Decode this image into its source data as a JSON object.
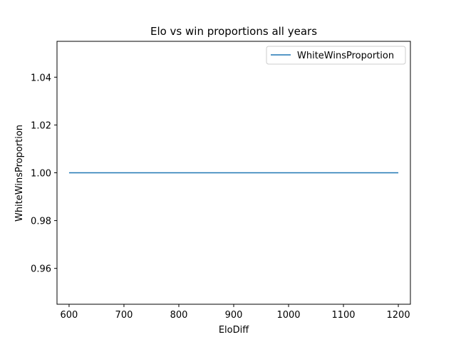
{
  "chart_data": {
    "type": "line",
    "title": "Elo vs win proportions all years",
    "xlabel": "EloDiff",
    "ylabel": "WhiteWinsProportion",
    "xlim": [
      578,
      1222
    ],
    "ylim": [
      0.945,
      1.055
    ],
    "x_ticks": [
      600,
      700,
      800,
      900,
      1000,
      1100,
      1200
    ],
    "y_ticks": [
      0.96,
      0.98,
      1.0,
      1.02,
      1.04
    ],
    "y_tick_labels": [
      "0.96",
      "0.98",
      "1.00",
      "1.02",
      "1.04"
    ],
    "grid": false,
    "legend_position": "top-right",
    "series": [
      {
        "name": "WhiteWinsProportion",
        "color": "#1f77b4",
        "x": [
          600,
          1200
        ],
        "values": [
          1.0,
          1.0
        ]
      }
    ]
  }
}
